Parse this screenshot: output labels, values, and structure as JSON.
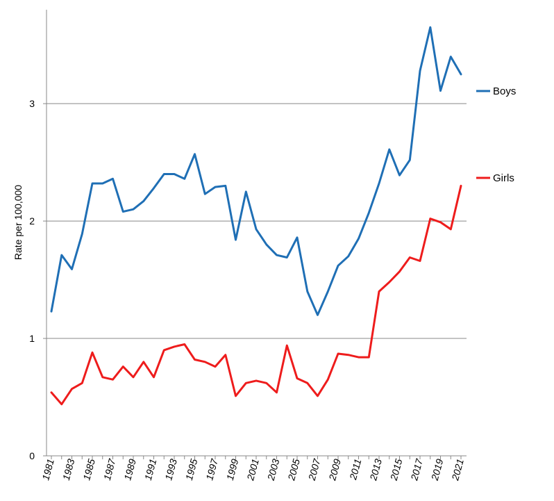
{
  "chart_data": {
    "type": "line",
    "x": [
      1981,
      1982,
      1983,
      1984,
      1985,
      1986,
      1987,
      1988,
      1989,
      1990,
      1991,
      1992,
      1993,
      1994,
      1995,
      1996,
      1997,
      1998,
      1999,
      2000,
      2001,
      2002,
      2003,
      2004,
      2005,
      2006,
      2007,
      2008,
      2009,
      2010,
      2011,
      2012,
      2013,
      2014,
      2015,
      2016,
      2017,
      2018,
      2019,
      2020,
      2021
    ],
    "xticks": [
      "1981",
      "1983",
      "1985",
      "1987",
      "1989",
      "1991",
      "1993",
      "1995",
      "1997",
      "1999",
      "2001",
      "2003",
      "2005",
      "2007",
      "2009",
      "2011",
      "2013",
      "2015",
      "2017",
      "2019",
      "2021"
    ],
    "ylabel": "Rate per 100,000",
    "ylim": [
      0,
      3.8
    ],
    "yticks": [
      "0",
      "1",
      "2",
      "3"
    ],
    "grid": true,
    "legend_position": "right",
    "series": [
      {
        "name": "Boys",
        "color": "#1f6fb5",
        "values": [
          1.23,
          1.71,
          1.59,
          1.89,
          2.32,
          2.32,
          2.36,
          2.08,
          2.1,
          2.17,
          2.28,
          2.4,
          2.4,
          2.36,
          2.57,
          2.23,
          2.29,
          2.3,
          1.84,
          2.25,
          1.93,
          1.8,
          1.71,
          1.69,
          1.86,
          1.4,
          1.2,
          1.4,
          1.62,
          1.7,
          1.85,
          2.07,
          2.32,
          2.61,
          2.39,
          2.52,
          3.28,
          3.65,
          3.11,
          3.4,
          3.25
        ]
      },
      {
        "name": "Girls",
        "color": "#ee1c1c",
        "values": [
          0.54,
          0.44,
          0.57,
          0.62,
          0.88,
          0.67,
          0.65,
          0.76,
          0.67,
          0.8,
          0.67,
          0.9,
          0.93,
          0.95,
          0.82,
          0.8,
          0.76,
          0.86,
          0.51,
          0.62,
          0.64,
          0.62,
          0.54,
          0.94,
          0.66,
          0.62,
          0.51,
          0.65,
          0.87,
          0.86,
          0.84,
          0.84,
          1.4,
          1.48,
          1.57,
          1.69,
          1.66,
          2.02,
          1.99,
          1.93,
          2.3
        ]
      }
    ]
  }
}
